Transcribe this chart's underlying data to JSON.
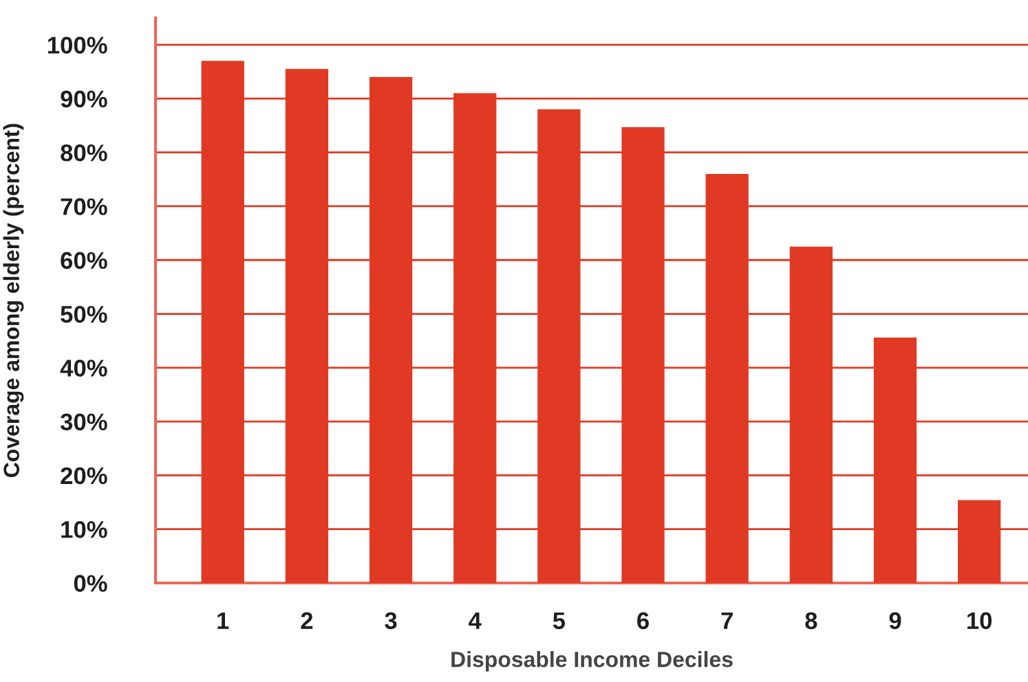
{
  "chart_data": {
    "type": "bar",
    "categories": [
      "1",
      "2",
      "3",
      "4",
      "5",
      "6",
      "7",
      "8",
      "9",
      "10"
    ],
    "values": [
      97,
      95.5,
      94,
      91,
      88,
      84.7,
      76,
      62.5,
      45.6,
      15.4
    ],
    "color": "#e03a24",
    "xlabel": "Disposable Income Deciles",
    "ylabel": "Coverage among elderly (percent)",
    "ylim": [
      0,
      105
    ],
    "yticks": [
      {
        "value": 0,
        "label": "0%"
      },
      {
        "value": 10,
        "label": "10%"
      },
      {
        "value": 20,
        "label": "20%"
      },
      {
        "value": 30,
        "label": "30%"
      },
      {
        "value": 40,
        "label": "40%"
      },
      {
        "value": 50,
        "label": "50%"
      },
      {
        "value": 60,
        "label": "60%"
      },
      {
        "value": 70,
        "label": "70%"
      },
      {
        "value": 80,
        "label": "80%"
      },
      {
        "value": 90,
        "label": "90%"
      },
      {
        "value": 100,
        "label": "100%"
      }
    ],
    "grid": "y"
  }
}
